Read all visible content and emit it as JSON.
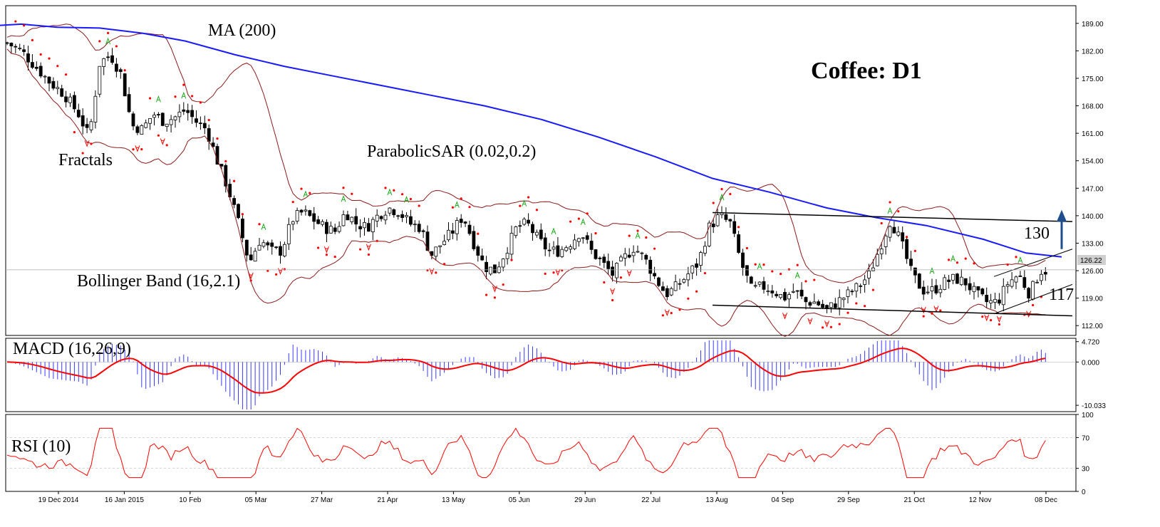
{
  "chart_data": {
    "type": "candlestick",
    "title": "Coffee: D1",
    "main_panel": {
      "ylim": [
        109.5,
        193.5
      ],
      "yticks": [
        "189.00",
        "182.00",
        "175.00",
        "168.00",
        "161.00",
        "154.00",
        "147.00",
        "140.00",
        "133.00",
        "126.00",
        "119.00",
        "112.00"
      ],
      "current_price_label": "126.22",
      "current_price": 126.22,
      "x_labels": [
        "19 Dec 2014",
        "16 Jan 2015",
        "10 Feb",
        "05 Mar",
        "27 Mar",
        "21 Apr",
        "13 May",
        "05 Jun",
        "29 Jun",
        "22 Jul",
        "13 Aug",
        "04 Sep",
        "29 Sep",
        "21 Oct",
        "12 Nov",
        "08 Dec"
      ],
      "indicator_labels": {
        "ma": "MA (200)",
        "fractals": "Fractals",
        "sar": "ParabolicSAR (0.02,0.2)",
        "bollinger": "Bollinger Band (16,2.1)"
      },
      "level_labels": [
        "130",
        "117"
      ],
      "resistance_level": 130,
      "support_level": 117,
      "ma200": [
        [
          0,
          188.5
        ],
        [
          30,
          188.8
        ],
        [
          80,
          188.0
        ],
        [
          140,
          187.8
        ],
        [
          200,
          186.5
        ],
        [
          260,
          184.5
        ],
        [
          330,
          181.0
        ],
        [
          400,
          178.0
        ],
        [
          470,
          175.5
        ],
        [
          540,
          173.0
        ],
        [
          610,
          170.5
        ],
        [
          680,
          168.0
        ],
        [
          760,
          164.5
        ],
        [
          840,
          160.0
        ],
        [
          920,
          155.0
        ],
        [
          1000,
          149.5
        ],
        [
          1080,
          146.0
        ],
        [
          1160,
          142.0
        ],
        [
          1230,
          139.5
        ],
        [
          1300,
          137.5
        ],
        [
          1380,
          134.0
        ],
        [
          1440,
          130.5
        ],
        [
          1490,
          129.5
        ]
      ],
      "close_path": [
        [
          10,
          184
        ],
        [
          30,
          182
        ],
        [
          50,
          178
        ],
        [
          70,
          174
        ],
        [
          90,
          171
        ],
        [
          110,
          166
        ],
        [
          125,
          160
        ],
        [
          140,
          179
        ],
        [
          155,
          181
        ],
        [
          170,
          176
        ],
        [
          185,
          163
        ],
        [
          200,
          162
        ],
        [
          215,
          166
        ],
        [
          230,
          164
        ],
        [
          245,
          165
        ],
        [
          260,
          167
        ],
        [
          275,
          164
        ],
        [
          290,
          162
        ],
        [
          305,
          154
        ],
        [
          320,
          147
        ],
        [
          335,
          138
        ],
        [
          350,
          128
        ],
        [
          365,
          134
        ],
        [
          380,
          131
        ],
        [
          395,
          131
        ],
        [
          410,
          139
        ],
        [
          425,
          141
        ],
        [
          440,
          139
        ],
        [
          455,
          137
        ],
        [
          470,
          136
        ],
        [
          485,
          141
        ],
        [
          500,
          138
        ],
        [
          515,
          137
        ],
        [
          530,
          140
        ],
        [
          545,
          142
        ],
        [
          560,
          141
        ],
        [
          575,
          138
        ],
        [
          590,
          137
        ],
        [
          605,
          130
        ],
        [
          620,
          133
        ],
        [
          635,
          136
        ],
        [
          650,
          140
        ],
        [
          665,
          133
        ],
        [
          680,
          127
        ],
        [
          695,
          126
        ],
        [
          710,
          131
        ],
        [
          725,
          137
        ],
        [
          740,
          138
        ],
        [
          755,
          134
        ],
        [
          770,
          131
        ],
        [
          785,
          131
        ],
        [
          800,
          133
        ],
        [
          815,
          136
        ],
        [
          830,
          131
        ],
        [
          845,
          128
        ],
        [
          860,
          125
        ],
        [
          875,
          129
        ],
        [
          890,
          132
        ],
        [
          905,
          129
        ],
        [
          920,
          124
        ],
        [
          935,
          120
        ],
        [
          950,
          122
        ],
        [
          965,
          125
        ],
        [
          980,
          128
        ],
        [
          995,
          137
        ],
        [
          1010,
          140
        ],
        [
          1025,
          138
        ],
        [
          1040,
          128
        ],
        [
          1055,
          121
        ],
        [
          1070,
          122
        ],
        [
          1085,
          121
        ],
        [
          1100,
          119
        ],
        [
          1115,
          121
        ],
        [
          1130,
          118
        ],
        [
          1145,
          118
        ],
        [
          1160,
          116
        ],
        [
          1175,
          118
        ],
        [
          1190,
          120
        ],
        [
          1205,
          122
        ],
        [
          1220,
          125
        ],
        [
          1235,
          132
        ],
        [
          1250,
          139
        ],
        [
          1265,
          133
        ],
        [
          1280,
          125
        ],
        [
          1295,
          121
        ],
        [
          1310,
          121
        ],
        [
          1325,
          123
        ],
        [
          1340,
          124
        ],
        [
          1355,
          123
        ],
        [
          1370,
          120
        ],
        [
          1385,
          118
        ],
        [
          1400,
          118
        ],
        [
          1415,
          123
        ],
        [
          1430,
          125
        ],
        [
          1445,
          120
        ],
        [
          1460,
          126
        ],
        [
          1470,
          126
        ]
      ]
    },
    "macd_panel": {
      "label": "MACD (16,26,9)",
      "ylim": [
        -11.5,
        5.5
      ],
      "yticks": [
        "4.720",
        "0.000",
        "-10.033"
      ]
    },
    "rsi_panel": {
      "label": "RSI (10)",
      "ylim": [
        0,
        100
      ],
      "yticks": [
        "100",
        "70",
        "30",
        "0"
      ]
    },
    "colors": {
      "candle_up": "#ffffff",
      "candle_down": "#000000",
      "ma": "#1a1aff",
      "bollinger": "#8b1a1a",
      "sar": "#ff0000",
      "fractal_up": "#22aa22",
      "fractal_down": "#ff0000",
      "macd_hist": "#3b3bff",
      "macd_signal": "#ff0000",
      "rsi": "#ff0000",
      "arrow": "#1f4e8c"
    }
  }
}
